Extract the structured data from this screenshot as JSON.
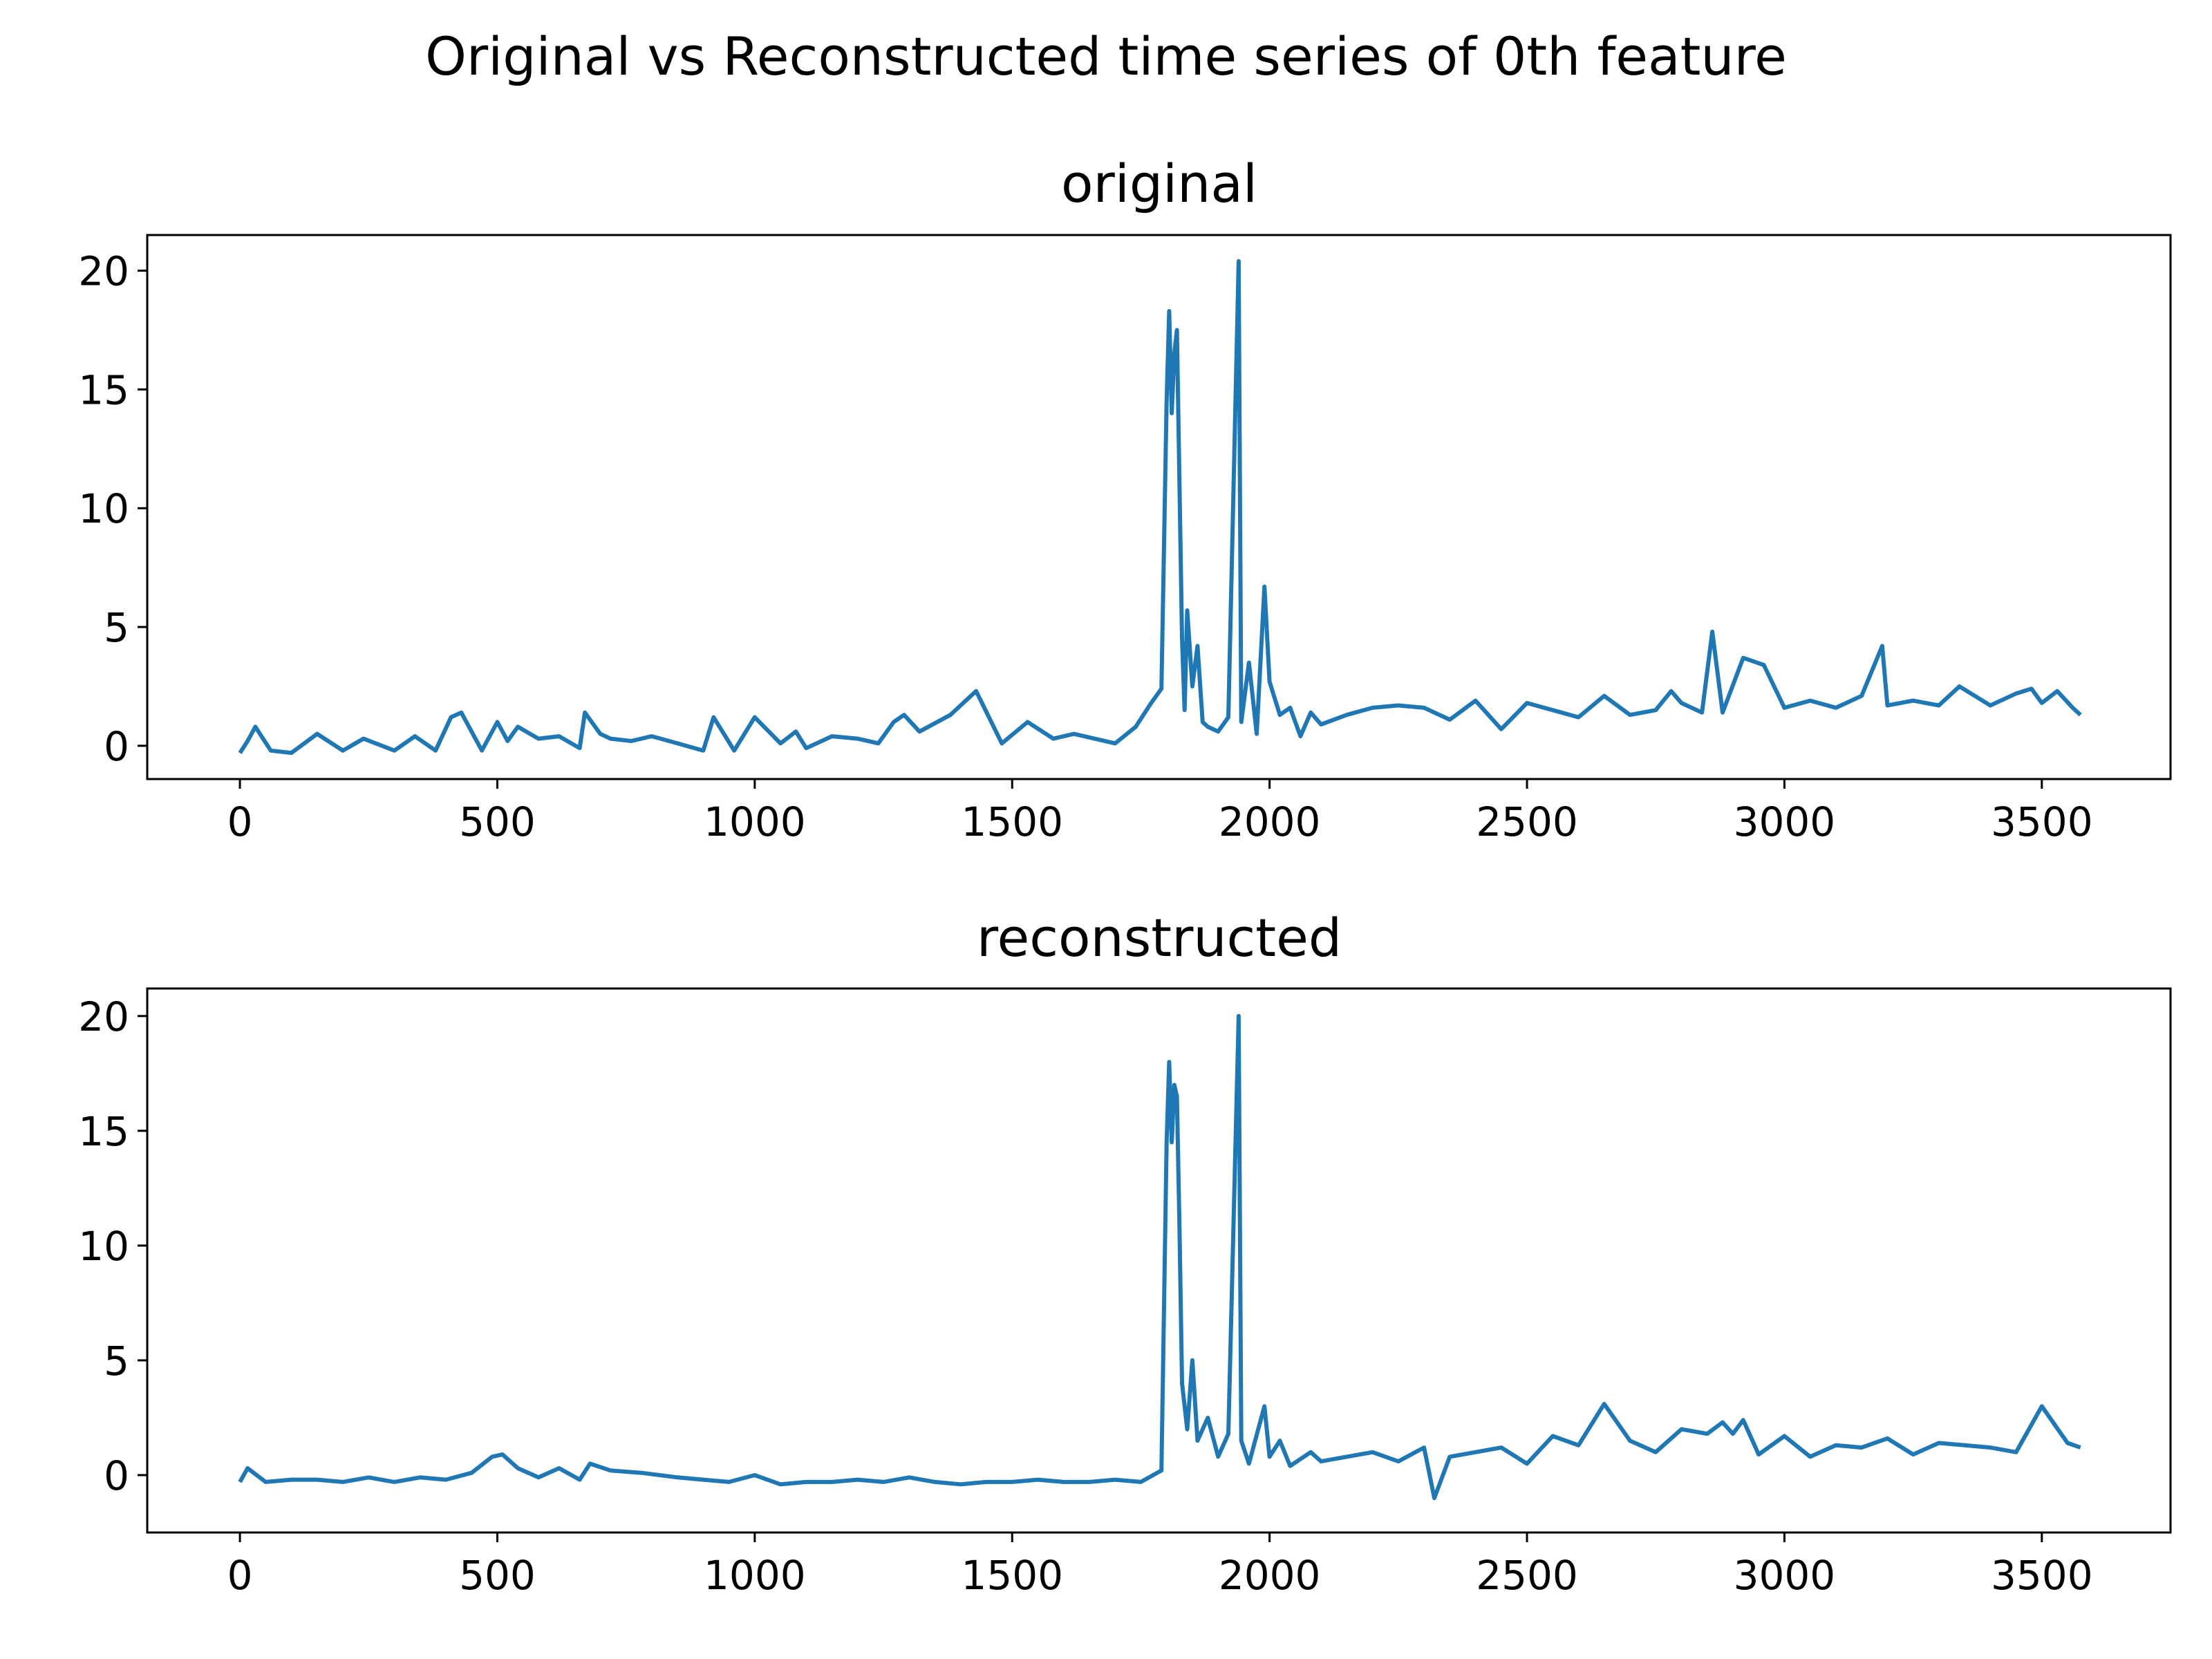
{
  "figure": {
    "suptitle": "Original vs Reconstructed time series of 0th feature"
  },
  "chart_data": [
    {
      "type": "line",
      "title": "original",
      "xlabel": "",
      "ylabel": "",
      "xlim": [
        -180,
        3750
      ],
      "ylim": [
        -1.4,
        21.5
      ],
      "x_ticks": [
        0,
        500,
        1000,
        1500,
        2000,
        2500,
        3000,
        3500
      ],
      "y_ticks": [
        0,
        5,
        10,
        15,
        20
      ],
      "grid": false,
      "legend": "none",
      "color": "#1f77b4",
      "series": [
        {
          "x": [
            0,
            15,
            30,
            60,
            100,
            150,
            200,
            240,
            300,
            340,
            380,
            410,
            430,
            470,
            500,
            520,
            540,
            580,
            620,
            660,
            670,
            700,
            720,
            760,
            800,
            850,
            900,
            920,
            960,
            1000,
            1050,
            1080,
            1100,
            1150,
            1200,
            1240,
            1270,
            1290,
            1320,
            1380,
            1430,
            1480,
            1530,
            1580,
            1620,
            1660,
            1700,
            1740,
            1770,
            1790,
            1800,
            1805,
            1810,
            1815,
            1820,
            1825,
            1830,
            1835,
            1840,
            1850,
            1860,
            1870,
            1880,
            1900,
            1920,
            1940,
            1945,
            1960,
            1975,
            1990,
            2000,
            2020,
            2040,
            2060,
            2080,
            2100,
            2150,
            2200,
            2250,
            2300,
            2350,
            2400,
            2450,
            2500,
            2550,
            2600,
            2650,
            2700,
            2750,
            2780,
            2800,
            2840,
            2860,
            2880,
            2920,
            2960,
            3000,
            3050,
            3100,
            3150,
            3190,
            3200,
            3250,
            3300,
            3340,
            3400,
            3450,
            3480,
            3500,
            3530,
            3560,
            3575
          ],
          "y": [
            -0.3,
            0.2,
            0.8,
            -0.2,
            -0.3,
            0.5,
            -0.2,
            0.3,
            -0.2,
            0.4,
            -0.2,
            1.2,
            1.4,
            -0.2,
            1.0,
            0.2,
            0.8,
            0.3,
            0.4,
            -0.1,
            1.4,
            0.5,
            0.3,
            0.2,
            0.4,
            0.1,
            -0.2,
            1.2,
            -0.2,
            1.2,
            0.1,
            0.6,
            -0.1,
            0.4,
            0.3,
            0.1,
            1.0,
            1.3,
            0.6,
            1.3,
            2.3,
            0.1,
            1.0,
            0.3,
            0.5,
            0.3,
            0.1,
            0.8,
            1.8,
            2.4,
            14.5,
            18.3,
            14.0,
            16.5,
            17.5,
            11.0,
            4.5,
            1.5,
            5.7,
            2.5,
            4.2,
            1.0,
            0.8,
            0.6,
            1.2,
            20.4,
            1.0,
            3.5,
            0.5,
            6.7,
            2.7,
            1.3,
            1.6,
            0.4,
            1.4,
            0.9,
            1.3,
            1.6,
            1.7,
            1.6,
            1.1,
            1.9,
            0.7,
            1.8,
            1.5,
            1.2,
            2.1,
            1.3,
            1.5,
            2.3,
            1.8,
            1.4,
            4.8,
            1.4,
            3.7,
            3.4,
            1.6,
            1.9,
            1.6,
            2.1,
            4.2,
            1.7,
            1.9,
            1.7,
            2.5,
            1.7,
            2.2,
            2.4,
            1.8,
            2.3,
            1.6,
            1.3
          ]
        }
      ]
    },
    {
      "type": "line",
      "title": "reconstructed",
      "xlabel": "",
      "ylabel": "",
      "xlim": [
        -180,
        3750
      ],
      "ylim": [
        -2.5,
        21.2
      ],
      "x_ticks": [
        0,
        500,
        1000,
        1500,
        2000,
        2500,
        3000,
        3500
      ],
      "y_ticks": [
        0,
        5,
        10,
        15,
        20
      ],
      "grid": false,
      "legend": "none",
      "color": "#1f77b4",
      "series": [
        {
          "x": [
            0,
            15,
            50,
            100,
            150,
            200,
            250,
            300,
            350,
            400,
            450,
            490,
            510,
            540,
            580,
            620,
            660,
            680,
            720,
            780,
            850,
            900,
            950,
            1000,
            1050,
            1100,
            1150,
            1200,
            1250,
            1300,
            1350,
            1400,
            1450,
            1500,
            1550,
            1600,
            1650,
            1700,
            1750,
            1790,
            1800,
            1805,
            1810,
            1815,
            1820,
            1825,
            1830,
            1840,
            1850,
            1860,
            1880,
            1900,
            1920,
            1940,
            1945,
            1960,
            1990,
            2000,
            2020,
            2040,
            2080,
            2100,
            2150,
            2200,
            2250,
            2300,
            2320,
            2350,
            2400,
            2450,
            2500,
            2550,
            2600,
            2650,
            2700,
            2750,
            2800,
            2850,
            2880,
            2900,
            2920,
            2950,
            3000,
            3050,
            3100,
            3150,
            3200,
            3250,
            3300,
            3350,
            3400,
            3450,
            3500,
            3550,
            3575
          ],
          "y": [
            -0.3,
            0.3,
            -0.3,
            -0.2,
            -0.2,
            -0.3,
            -0.1,
            -0.3,
            -0.1,
            -0.2,
            0.1,
            0.8,
            0.9,
            0.3,
            -0.1,
            0.3,
            -0.2,
            0.5,
            0.2,
            0.1,
            -0.1,
            -0.2,
            -0.3,
            0.0,
            -0.4,
            -0.3,
            -0.3,
            -0.2,
            -0.3,
            -0.1,
            -0.3,
            -0.4,
            -0.3,
            -0.3,
            -0.2,
            -0.3,
            -0.3,
            -0.2,
            -0.3,
            0.2,
            14.5,
            18.0,
            14.5,
            17.0,
            16.5,
            10.8,
            4.0,
            2.0,
            5.0,
            1.5,
            2.5,
            0.8,
            1.8,
            20.0,
            1.5,
            0.5,
            3.0,
            0.8,
            1.5,
            0.4,
            1.0,
            0.6,
            0.8,
            1.0,
            0.6,
            1.2,
            -1.0,
            0.8,
            1.0,
            1.2,
            0.5,
            1.7,
            1.3,
            3.1,
            1.5,
            1.0,
            2.0,
            1.8,
            2.3,
            1.8,
            2.4,
            0.9,
            1.7,
            0.8,
            1.3,
            1.2,
            1.6,
            0.9,
            1.4,
            1.3,
            1.2,
            1.0,
            3.0,
            1.4,
            1.2
          ]
        }
      ]
    }
  ]
}
